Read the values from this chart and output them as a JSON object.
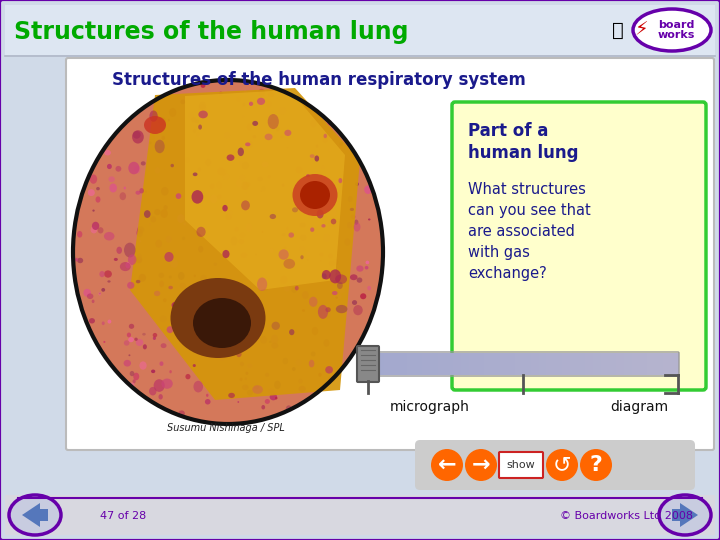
{
  "title": "Structures of the human lung",
  "bg_color": "#d0dae8",
  "header_title_color": "#00aa00",
  "main_title": "Structures of the human respiratory system",
  "main_title_color": "#1a1a8c",
  "info_box_bg": "#ffffcc",
  "info_box_border": "#33cc33",
  "info_box_bold": "Part of a\nhuman lung",
  "info_box_text": "What structures\ncan you see that\nare associated\nwith gas\nexchange?",
  "info_box_bold_color": "#1a1a8c",
  "info_box_text_color": "#1a1a8c",
  "credit_text": "Susumu Nishinaga / SPL",
  "micrograph_label": "micrograph",
  "diagram_label": "diagram",
  "footer_text_left": "47 of 28",
  "footer_text_right": "© Boardworks Ltd 2008",
  "footer_line_color": "#6600aa",
  "footer_bg": "#d8d8e0",
  "border_color": "#6600aa",
  "panel_bg": "#ffffff",
  "panel_border": "#bbbbbb",
  "logo_text1": "board",
  "logo_text2": "works"
}
